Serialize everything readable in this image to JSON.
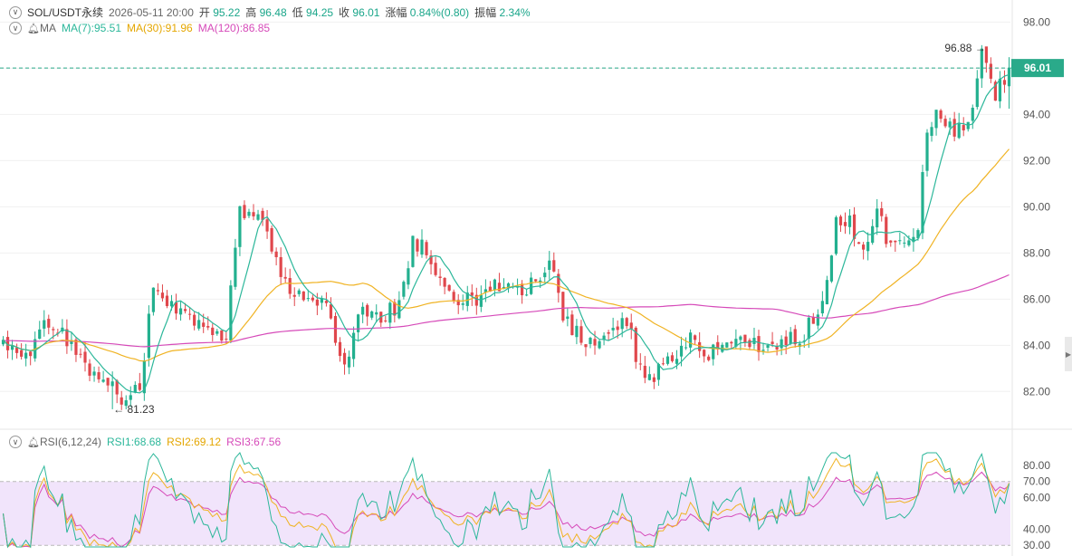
{
  "header": {
    "symbol": "SOL/USDT永续",
    "datetime": "2026-05-11 20:00",
    "open_label": "开",
    "open": "95.22",
    "high_label": "高",
    "high": "96.48",
    "low_label": "低",
    "low": "94.25",
    "close_label": "收",
    "close": "96.01",
    "change_label": "涨幅",
    "change": "0.84%(0.80)",
    "amp_label": "振幅",
    "amp": "2.34%"
  },
  "ma_legend": {
    "title": "MA",
    "ma7": "MA(7):95.51",
    "ma30": "MA(30):91.96",
    "ma120": "MA(120):86.85"
  },
  "rsi_legend": {
    "title": "RSI(6,12,24)",
    "rsi1": "RSI1:68.68",
    "rsi2": "RSI2:69.12",
    "rsi3": "RSI3:67.56"
  },
  "colors": {
    "up": "#23b08f",
    "down": "#e0474c",
    "ma7": "#2cb79a",
    "ma30": "#f0b323",
    "ma120": "#d64ab9",
    "rsi1": "#2cb79a",
    "rsi2": "#f0b323",
    "rsi3": "#d64ab9",
    "rsi_band": "#f1e4fb",
    "grid": "#f0f0f0",
    "last_price": "#2aaa8a"
  },
  "chart_data": [
    {
      "type": "candlestick",
      "title": "SOL/USDT永续",
      "y_ticks": [
        "98.00",
        "96.00",
        "94.00",
        "92.00",
        "90.00",
        "88.00",
        "86.00",
        "84.00",
        "82.00"
      ],
      "y_tick_values": [
        98,
        96,
        94,
        92,
        90,
        88,
        86,
        84,
        82
      ],
      "ylim": [
        80.6,
        98.8
      ],
      "last_price": 96.01,
      "last_price_label": "96.01",
      "high_annotation": {
        "value": 96.88,
        "label": "96.88"
      },
      "low_annotation": {
        "value": 81.23,
        "label": "81.23"
      },
      "anchors": [
        [
          0,
          83.9
        ],
        [
          5,
          83.5
        ],
        [
          9,
          84.8
        ],
        [
          13,
          84.6
        ],
        [
          18,
          83.2
        ],
        [
          22,
          82.6
        ],
        [
          26,
          81.7
        ],
        [
          30,
          82.4
        ],
        [
          33,
          86.5
        ],
        [
          38,
          85.5
        ],
        [
          42,
          84.9
        ],
        [
          46,
          84.2
        ],
        [
          49,
          84.5
        ],
        [
          52,
          89.7
        ],
        [
          56,
          89.5
        ],
        [
          59,
          88.2
        ],
        [
          63,
          86.4
        ],
        [
          67,
          85.8
        ],
        [
          71,
          85.6
        ],
        [
          75,
          83.2
        ],
        [
          79,
          85.7
        ],
        [
          83,
          85.2
        ],
        [
          87,
          85.8
        ],
        [
          90,
          88.5
        ],
        [
          93,
          88.3
        ],
        [
          97,
          86.4
        ],
        [
          101,
          85.8
        ],
        [
          105,
          86.2
        ],
        [
          109,
          86.5
        ],
        [
          113,
          86.3
        ],
        [
          117,
          86.8
        ],
        [
          120,
          87.5
        ],
        [
          123,
          85.4
        ],
        [
          127,
          84.3
        ],
        [
          131,
          83.9
        ],
        [
          134,
          84.8
        ],
        [
          137,
          85.2
        ],
        [
          140,
          82.9
        ],
        [
          143,
          82.8
        ],
        [
          147,
          83.5
        ],
        [
          151,
          84.4
        ],
        [
          155,
          83.6
        ],
        [
          159,
          83.9
        ],
        [
          163,
          84.2
        ],
        [
          168,
          83.8
        ],
        [
          172,
          84.3
        ],
        [
          176,
          84.5
        ],
        [
          180,
          85.6
        ],
        [
          183,
          89.6
        ],
        [
          186,
          89.4
        ],
        [
          189,
          88.2
        ],
        [
          192,
          89.6
        ],
        [
          195,
          88.4
        ],
        [
          198,
          88.2
        ],
        [
          201,
          89.4
        ],
        [
          203,
          93.2
        ],
        [
          206,
          94.2
        ],
        [
          209,
          93.2
        ],
        [
          212,
          93.3
        ],
        [
          215,
          96.5
        ],
        [
          218,
          94.8
        ],
        [
          221,
          96.01
        ]
      ],
      "ma_periods": {
        "ma7": 7,
        "ma30": 30,
        "ma120": 120
      }
    },
    {
      "type": "line",
      "title": "RSI(6,12,24)",
      "y_ticks": [
        "80.00",
        "70.00",
        "60.00",
        "40.00",
        "30.00"
      ],
      "y_tick_values": [
        80,
        70,
        60,
        40,
        30
      ],
      "ylim": [
        29,
        88
      ],
      "band": [
        30,
        70
      ],
      "series": [
        {
          "name": "RSI1",
          "period": 6,
          "last": 68.68
        },
        {
          "name": "RSI2",
          "period": 12,
          "last": 69.12
        },
        {
          "name": "RSI3",
          "period": 24,
          "last": 67.56
        }
      ]
    }
  ]
}
